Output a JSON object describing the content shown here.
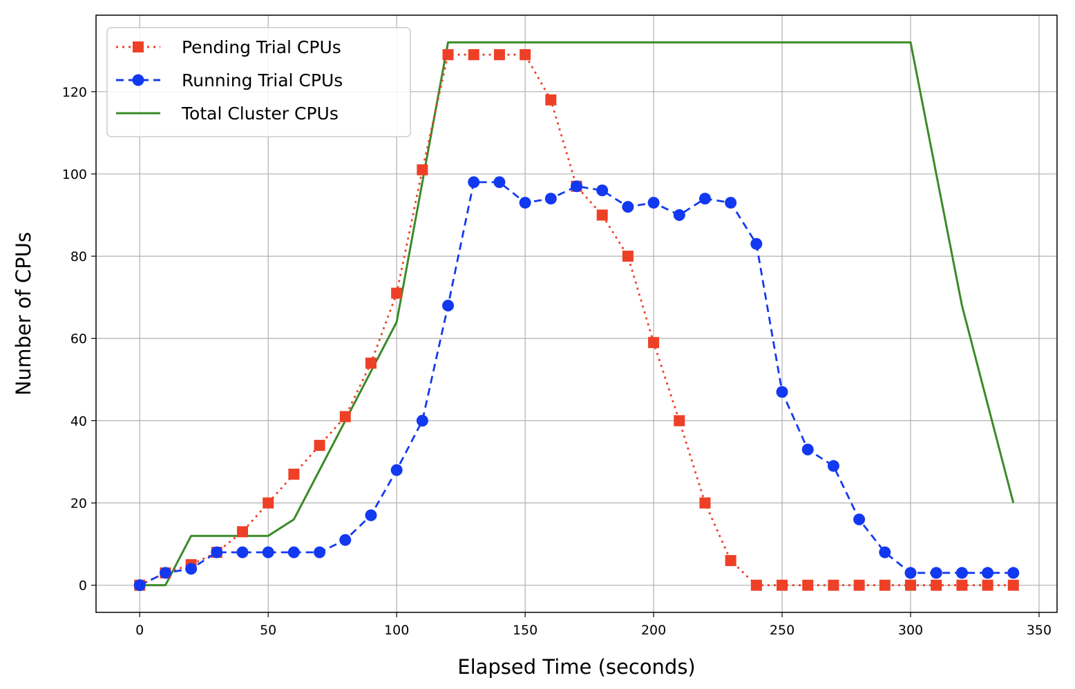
{
  "chart_data": {
    "type": "line",
    "xlabel": "Elapsed Time (seconds)",
    "ylabel": "Number of CPUs",
    "xlim": [
      -17,
      357
    ],
    "ylim": [
      -6.6,
      138.6
    ],
    "xticks": [
      0,
      50,
      100,
      150,
      200,
      250,
      300,
      350
    ],
    "yticks": [
      0,
      20,
      40,
      60,
      80,
      100,
      120
    ],
    "grid": true,
    "legend_position": "upper-left",
    "series": [
      {
        "name": "Pending Trial CPUs",
        "color": "#ee4027",
        "line_style": "dotted",
        "marker": "square",
        "x": [
          0,
          10,
          20,
          30,
          40,
          50,
          60,
          70,
          80,
          90,
          100,
          110,
          120,
          130,
          140,
          150,
          160,
          170,
          180,
          190,
          200,
          210,
          220,
          230,
          240,
          250,
          260,
          270,
          280,
          290,
          300,
          310,
          320,
          330,
          340
        ],
        "y": [
          0,
          3,
          5,
          8,
          13,
          20,
          27,
          34,
          41,
          54,
          71,
          101,
          129,
          129,
          129,
          129,
          118,
          97,
          90,
          80,
          59,
          40,
          20,
          6,
          0,
          0,
          0,
          0,
          0,
          0,
          0,
          0,
          0,
          0,
          0
        ]
      },
      {
        "name": "Running Trial CPUs",
        "color": "#1239f0",
        "line_style": "dashed",
        "marker": "circle",
        "x": [
          0,
          10,
          20,
          30,
          40,
          50,
          60,
          70,
          80,
          90,
          100,
          110,
          120,
          130,
          140,
          150,
          160,
          170,
          180,
          190,
          200,
          210,
          220,
          230,
          240,
          250,
          260,
          270,
          280,
          290,
          300,
          310,
          320,
          330,
          340
        ],
        "y": [
          0,
          3,
          4,
          8,
          8,
          8,
          8,
          8,
          11,
          17,
          28,
          40,
          68,
          98,
          98,
          93,
          94,
          97,
          96,
          92,
          93,
          90,
          94,
          93,
          83,
          47,
          33,
          29,
          16,
          8,
          3,
          3,
          3,
          3,
          3
        ]
      },
      {
        "name": "Total Cluster CPUs",
        "color": "#3a8a28",
        "line_style": "solid",
        "marker": "none",
        "x": [
          0,
          10,
          20,
          30,
          40,
          50,
          60,
          70,
          80,
          90,
          100,
          110,
          120,
          130,
          140,
          150,
          160,
          170,
          180,
          190,
          200,
          210,
          220,
          230,
          240,
          250,
          260,
          270,
          280,
          290,
          300,
          310,
          320,
          330,
          340
        ],
        "y": [
          0,
          0,
          12,
          12,
          12,
          12,
          16,
          28,
          40,
          52,
          64,
          98,
          132,
          132,
          132,
          132,
          132,
          132,
          132,
          132,
          132,
          132,
          132,
          132,
          132,
          132,
          132,
          132,
          132,
          132,
          132,
          100,
          68,
          44,
          20
        ]
      }
    ]
  }
}
